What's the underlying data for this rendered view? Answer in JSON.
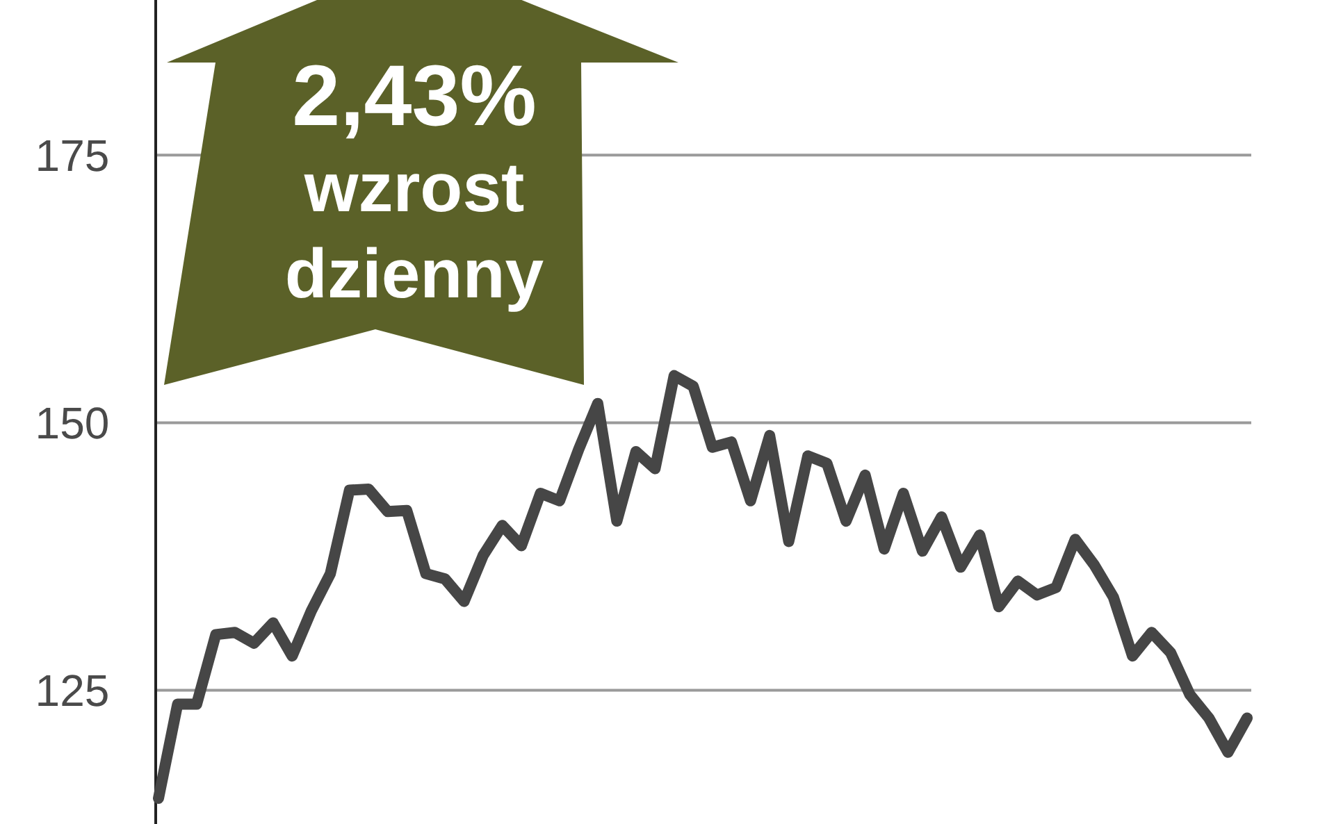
{
  "chart_data": {
    "type": "line",
    "categories": [
      null,
      null,
      null,
      null,
      null,
      null,
      null,
      null,
      null,
      null,
      null,
      null,
      null,
      null,
      null,
      null,
      null,
      null,
      null,
      null,
      null,
      null,
      null,
      null,
      null,
      null,
      null,
      null,
      null,
      null,
      null,
      null,
      null,
      null,
      null,
      null,
      null,
      null,
      null,
      null,
      null,
      null,
      null,
      null,
      null,
      null,
      null,
      null,
      null,
      null,
      null,
      null,
      null,
      null,
      null,
      null,
      null,
      null
    ],
    "series": [
      {
        "color": "#464646",
        "values": [
          114.9,
          123.7,
          123.7,
          130.2,
          130.4,
          129.4,
          131.3,
          128.2,
          132.4,
          135.9,
          143.7,
          143.8,
          141.7,
          141.8,
          135.9,
          135.4,
          133.3,
          137.6,
          140.4,
          138.5,
          143.4,
          142.7,
          147.5,
          151.8,
          140.8,
          147.3,
          145.7,
          154.4,
          153.4,
          147.7,
          148.2,
          142.7,
          148.8,
          138.9,
          146.9,
          146.2,
          140.8,
          145.1,
          138.2,
          143.4,
          138.0,
          141.2,
          136.5,
          139.5,
          132.8,
          135.2,
          133.9,
          134.6,
          139.1,
          136.7,
          133.7,
          128.2,
          130.4,
          128.5,
          124.6,
          122.4,
          119.2,
          122.4
        ]
      }
    ],
    "ylim": [
      112.5,
      189.5
    ],
    "yticks": [
      125,
      150,
      175
    ],
    "grid": "y",
    "line_style": "solid",
    "marker": "none",
    "annotations": [
      "2,43%",
      "wzrost",
      "dzienny"
    ]
  }
}
